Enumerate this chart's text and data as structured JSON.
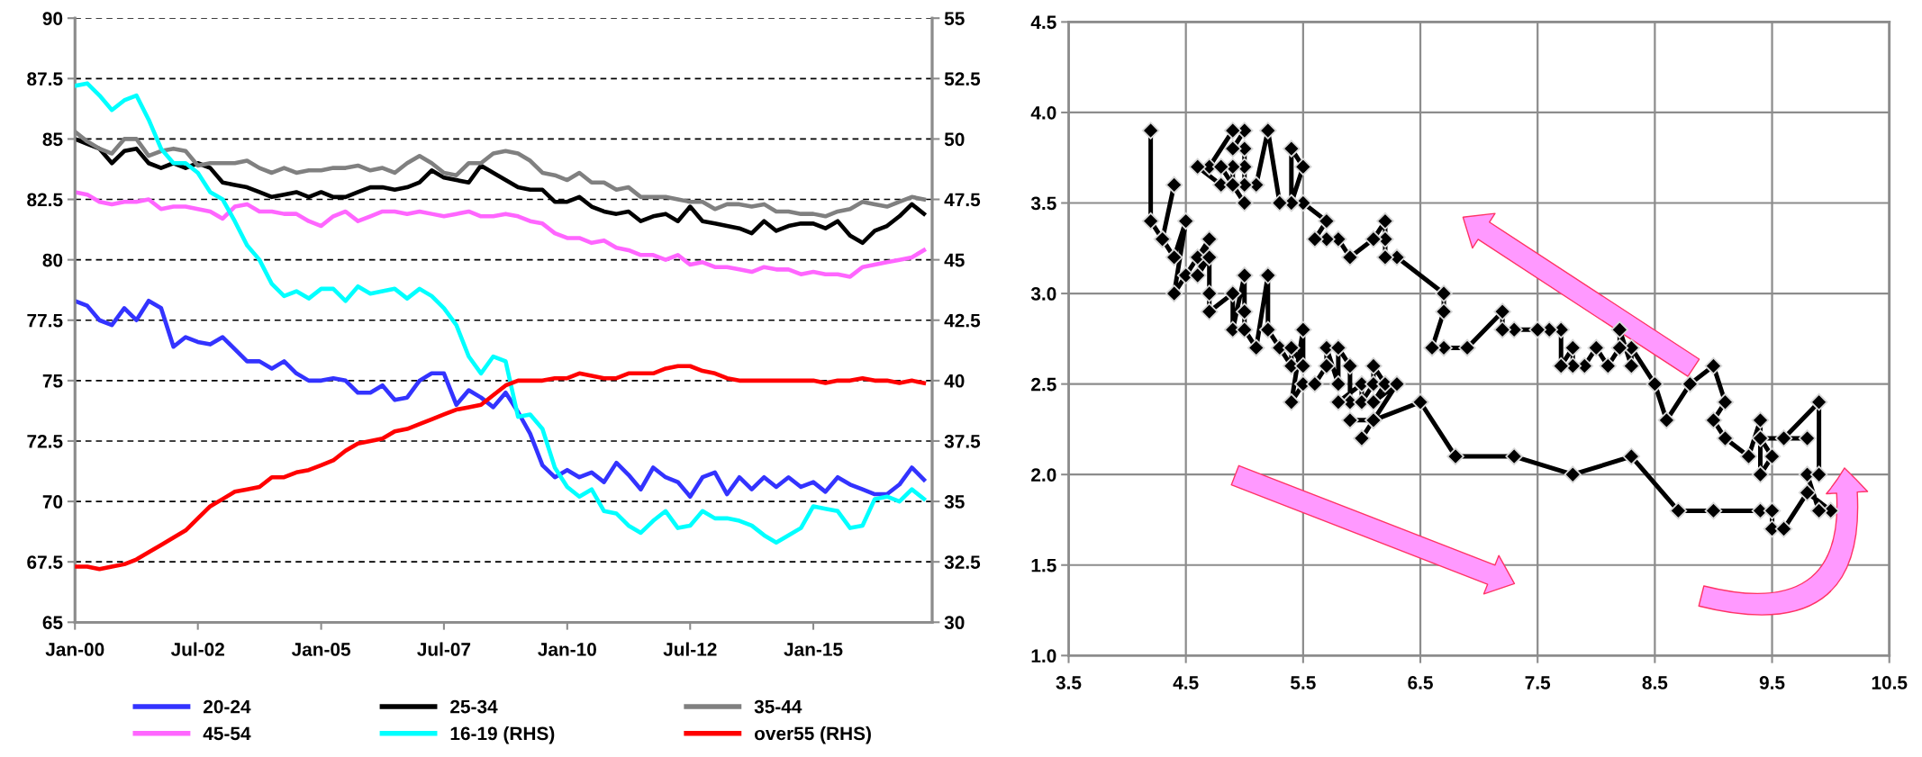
{
  "chart_data": [
    {
      "type": "line",
      "x": [
        "2000-01",
        "2000-04",
        "2000-07",
        "2000-10",
        "2001-01",
        "2001-04",
        "2001-07",
        "2001-10",
        "2002-01",
        "2002-04",
        "2002-07",
        "2002-10",
        "2003-01",
        "2003-04",
        "2003-07",
        "2003-10",
        "2004-01",
        "2004-04",
        "2004-07",
        "2004-10",
        "2005-01",
        "2005-04",
        "2005-07",
        "2005-10",
        "2006-01",
        "2006-04",
        "2006-07",
        "2006-10",
        "2007-01",
        "2007-04",
        "2007-07",
        "2007-10",
        "2008-01",
        "2008-04",
        "2008-07",
        "2008-10",
        "2009-01",
        "2009-04",
        "2009-07",
        "2009-10",
        "2010-01",
        "2010-04",
        "2010-07",
        "2010-10",
        "2011-01",
        "2011-04",
        "2011-07",
        "2011-10",
        "2012-01",
        "2012-04",
        "2012-07",
        "2012-10",
        "2013-01",
        "2013-04",
        "2013-07",
        "2013-10",
        "2014-01",
        "2014-04",
        "2014-07",
        "2014-10",
        "2015-01",
        "2015-04",
        "2015-07",
        "2015-10",
        "2016-01",
        "2016-04",
        "2016-07",
        "2016-10",
        "2017-01",
        "2017-04"
      ],
      "xlim": [
        "2000-01",
        "2017-06"
      ],
      "xticks": [
        {
          "value": "2000-01",
          "label": "Jan-00"
        },
        {
          "value": "2002-07",
          "label": "Jul-02"
        },
        {
          "value": "2005-01",
          "label": "Jan-05"
        },
        {
          "value": "2007-07",
          "label": "Jul-07"
        },
        {
          "value": "2010-01",
          "label": "Jan-10"
        },
        {
          "value": "2012-07",
          "label": "Jul-12"
        },
        {
          "value": "2015-01",
          "label": "Jan-15"
        }
      ],
      "ylim": [
        65,
        90
      ],
      "yticks": [
        65,
        67.5,
        70,
        72.5,
        75,
        77.5,
        80,
        82.5,
        85,
        87.5,
        90
      ],
      "y2lim": [
        30,
        55
      ],
      "y2ticks": [
        30,
        32.5,
        35,
        37.5,
        40,
        42.5,
        45,
        47.5,
        50,
        52.5,
        55
      ],
      "grid": "y",
      "legend": "bottom",
      "series": [
        {
          "name": "20-24",
          "color": "#3333ff",
          "values": [
            78.3,
            78.1,
            77.5,
            77.3,
            78.0,
            77.5,
            78.3,
            78.0,
            76.4,
            76.8,
            76.6,
            76.5,
            76.8,
            76.3,
            75.8,
            75.8,
            75.5,
            75.8,
            75.3,
            75.0,
            75.0,
            75.1,
            75.0,
            74.5,
            74.5,
            74.8,
            74.2,
            74.3,
            75.0,
            75.3,
            75.3,
            74.0,
            74.6,
            74.3,
            73.9,
            74.5,
            73.7,
            72.8,
            71.5,
            71.0,
            71.3,
            71.0,
            71.2,
            70.8,
            71.6,
            71.1,
            70.5,
            71.4,
            71.0,
            70.8,
            70.2,
            71.0,
            71.2,
            70.3,
            71.0,
            70.5,
            71.0,
            70.6,
            71.0,
            70.6,
            70.8,
            70.4,
            71.0,
            70.7,
            70.5,
            70.3,
            70.3,
            70.7,
            71.4,
            70.9
          ]
        },
        {
          "name": "25-34",
          "color": "#000000",
          "values": [
            85.0,
            84.8,
            84.6,
            84.0,
            84.5,
            84.6,
            84.0,
            83.8,
            84.0,
            83.8,
            84.0,
            83.8,
            83.2,
            83.1,
            83.0,
            82.8,
            82.6,
            82.7,
            82.8,
            82.6,
            82.8,
            82.6,
            82.6,
            82.8,
            83.0,
            83.0,
            82.9,
            83.0,
            83.2,
            83.7,
            83.4,
            83.3,
            83.2,
            83.9,
            83.6,
            83.3,
            83.0,
            82.9,
            82.9,
            82.4,
            82.4,
            82.6,
            82.2,
            82.0,
            81.9,
            82.0,
            81.6,
            81.8,
            81.9,
            81.6,
            82.2,
            81.6,
            81.5,
            81.4,
            81.3,
            81.1,
            81.6,
            81.2,
            81.4,
            81.5,
            81.5,
            81.3,
            81.6,
            81.0,
            80.7,
            81.2,
            81.4,
            81.8,
            82.3,
            81.9
          ]
        },
        {
          "name": "35-44",
          "color": "#808080",
          "values": [
            85.3,
            84.9,
            84.6,
            84.4,
            85.0,
            85.0,
            84.3,
            84.5,
            84.6,
            84.5,
            83.9,
            84.0,
            84.0,
            84.0,
            84.1,
            83.8,
            83.6,
            83.8,
            83.6,
            83.7,
            83.7,
            83.8,
            83.8,
            83.9,
            83.7,
            83.8,
            83.6,
            84.0,
            84.3,
            84.0,
            83.6,
            83.5,
            84.0,
            84.0,
            84.4,
            84.5,
            84.4,
            84.1,
            83.6,
            83.5,
            83.3,
            83.6,
            83.2,
            83.2,
            82.9,
            83.0,
            82.6,
            82.6,
            82.6,
            82.5,
            82.4,
            82.4,
            82.1,
            82.3,
            82.3,
            82.2,
            82.3,
            82.0,
            82.0,
            81.9,
            81.9,
            81.8,
            82.0,
            82.1,
            82.4,
            82.3,
            82.2,
            82.4,
            82.6,
            82.5
          ]
        },
        {
          "name": "45-54",
          "color": "#ff66ff",
          "values": [
            82.8,
            82.7,
            82.4,
            82.3,
            82.4,
            82.4,
            82.5,
            82.1,
            82.2,
            82.2,
            82.1,
            82.0,
            81.7,
            82.2,
            82.3,
            82.0,
            82.0,
            81.9,
            81.9,
            81.6,
            81.4,
            81.8,
            82.0,
            81.6,
            81.8,
            82.0,
            82.0,
            81.9,
            82.0,
            81.9,
            81.8,
            81.9,
            82.0,
            81.8,
            81.8,
            81.9,
            81.8,
            81.6,
            81.5,
            81.1,
            80.9,
            80.9,
            80.7,
            80.8,
            80.5,
            80.4,
            80.2,
            80.2,
            80.0,
            80.2,
            79.8,
            79.9,
            79.7,
            79.7,
            79.6,
            79.5,
            79.7,
            79.6,
            79.6,
            79.4,
            79.5,
            79.4,
            79.4,
            79.3,
            79.7,
            79.8,
            79.9,
            80.0,
            80.1,
            80.4
          ]
        },
        {
          "name": "16-19 (RHS)",
          "color": "#00ffff",
          "axis": "y2",
          "values": [
            52.2,
            52.3,
            51.8,
            51.2,
            51.6,
            51.8,
            50.8,
            49.6,
            49.0,
            49.0,
            48.6,
            47.8,
            47.5,
            46.6,
            45.6,
            45.0,
            44.0,
            43.5,
            43.7,
            43.4,
            43.8,
            43.8,
            43.3,
            43.9,
            43.6,
            43.7,
            43.8,
            43.4,
            43.8,
            43.5,
            43.0,
            42.3,
            41.0,
            40.3,
            41.0,
            40.8,
            38.5,
            38.6,
            38.0,
            36.4,
            35.6,
            35.2,
            35.5,
            34.6,
            34.5,
            34.0,
            33.7,
            34.2,
            34.6,
            33.9,
            34.0,
            34.6,
            34.3,
            34.3,
            34.2,
            34.0,
            33.6,
            33.3,
            33.6,
            33.9,
            34.8,
            34.7,
            34.6,
            33.9,
            34.0,
            35.1,
            35.2,
            35.0,
            35.5,
            35.1
          ]
        },
        {
          "name": "over55 (RHS)",
          "color": "#ff0000",
          "axis": "y2",
          "values": [
            32.3,
            32.3,
            32.2,
            32.3,
            32.4,
            32.6,
            32.9,
            33.2,
            33.5,
            33.8,
            34.3,
            34.8,
            35.1,
            35.4,
            35.5,
            35.6,
            36.0,
            36.0,
            36.2,
            36.3,
            36.5,
            36.7,
            37.1,
            37.4,
            37.5,
            37.6,
            37.9,
            38.0,
            38.2,
            38.4,
            38.6,
            38.8,
            38.9,
            39.0,
            39.4,
            39.8,
            40.0,
            40.0,
            40.0,
            40.1,
            40.1,
            40.3,
            40.2,
            40.1,
            40.1,
            40.3,
            40.3,
            40.3,
            40.5,
            40.6,
            40.6,
            40.4,
            40.3,
            40.1,
            40.0,
            40.0,
            40.0,
            40.0,
            40.0,
            40.0,
            40.0,
            39.9,
            40.0,
            40.0,
            40.1,
            40.0,
            40.0,
            39.9,
            40.0,
            39.9
          ]
        }
      ]
    },
    {
      "type": "line",
      "xlim": [
        3.5,
        10.5
      ],
      "xticks": [
        3.5,
        4.5,
        5.5,
        6.5,
        7.5,
        8.5,
        9.5,
        10.5
      ],
      "ylim": [
        1.0,
        4.5
      ],
      "yticks": [
        {
          "value": 1,
          "label": "1.0"
        },
        1.5,
        {
          "value": 2,
          "label": "2.0"
        },
        2.5,
        {
          "value": 3,
          "label": "3.0"
        },
        3.5,
        {
          "value": 4,
          "label": "4.0"
        },
        4.5
      ],
      "grid": true,
      "marker": "diamond",
      "series": [
        {
          "color": "#000000",
          "x": [
            4.2,
            4.2,
            4.3,
            4.4,
            4.3,
            4.4,
            4.5,
            4.4,
            4.5,
            4.6,
            4.7,
            4.6,
            4.7,
            4.7,
            4.7,
            4.9,
            4.9,
            5.0,
            5.0,
            5.0,
            5.1,
            5.2,
            5.2,
            5.3,
            5.4,
            5.4,
            5.5,
            5.5,
            5.4,
            5.5,
            5.6,
            5.7,
            5.7,
            5.8,
            5.8,
            5.9,
            5.9,
            5.8,
            6.0,
            6.0,
            6.1,
            6.1,
            6.2,
            6.1,
            6.3,
            6.0,
            6.1,
            5.9,
            6.1,
            6.5,
            6.8,
            7.3,
            7.8,
            8.3,
            8.7,
            9.0,
            9.4,
            9.5,
            9.5,
            9.6,
            9.8,
            10.0,
            9.9,
            9.8,
            9.9,
            9.9,
            9.6,
            9.8,
            9.4,
            9.5,
            9.4,
            9.4,
            9.3,
            9.1,
            9.0,
            9.1,
            9.0,
            8.8,
            8.6,
            8.5,
            8.3,
            8.3,
            8.2,
            8.2,
            8.1,
            8.0,
            7.9,
            7.8,
            7.8,
            7.7,
            7.7,
            7.6,
            7.5,
            7.3,
            7.2,
            7.2,
            6.9,
            6.7,
            6.6,
            6.7,
            6.7,
            6.3,
            6.2,
            6.2,
            6.2,
            6.1,
            5.9,
            5.8,
            5.7,
            5.6,
            5.7,
            5.5,
            5.4,
            5.5,
            5.4,
            5.4,
            5.3,
            5.2,
            5.1,
            5.0,
            5.0,
            5.0,
            4.9,
            5.0,
            4.9,
            4.7,
            4.6,
            4.8,
            4.9,
            4.9,
            4.8,
            5.0
          ],
          "values": [
            3.9,
            3.4,
            3.3,
            3.6,
            3.3,
            3.2,
            3.4,
            3.0,
            3.1,
            3.2,
            3.3,
            3.1,
            3.2,
            3.0,
            2.9,
            3.0,
            2.8,
            3.1,
            2.9,
            2.8,
            2.7,
            3.1,
            2.8,
            2.7,
            2.6,
            2.7,
            2.6,
            2.8,
            2.4,
            2.5,
            2.5,
            2.6,
            2.7,
            2.5,
            2.7,
            2.6,
            2.4,
            2.4,
            2.5,
            2.4,
            2.5,
            2.6,
            2.5,
            2.4,
            2.5,
            2.2,
            2.3,
            2.3,
            2.3,
            2.4,
            2.1,
            2.1,
            2.0,
            2.1,
            1.8,
            1.8,
            1.8,
            1.8,
            1.7,
            1.7,
            1.9,
            1.8,
            1.8,
            2.0,
            2.0,
            2.4,
            2.2,
            2.2,
            2.2,
            2.1,
            2.0,
            2.3,
            2.1,
            2.2,
            2.3,
            2.4,
            2.6,
            2.5,
            2.3,
            2.5,
            2.7,
            2.6,
            2.8,
            2.7,
            2.6,
            2.7,
            2.6,
            2.6,
            2.7,
            2.6,
            2.8,
            2.8,
            2.8,
            2.8,
            2.8,
            2.9,
            2.7,
            2.7,
            2.7,
            2.9,
            3.0,
            3.2,
            3.2,
            3.3,
            3.4,
            3.3,
            3.2,
            3.3,
            3.3,
            3.3,
            3.4,
            3.5,
            3.5,
            3.7,
            3.8,
            3.5,
            3.5,
            3.9,
            3.6,
            3.6,
            3.7,
            3.8,
            3.8,
            3.9,
            3.9,
            3.7,
            3.7,
            3.6,
            3.6,
            3.7,
            3.7,
            3.5
          ]
        }
      ]
    }
  ]
}
